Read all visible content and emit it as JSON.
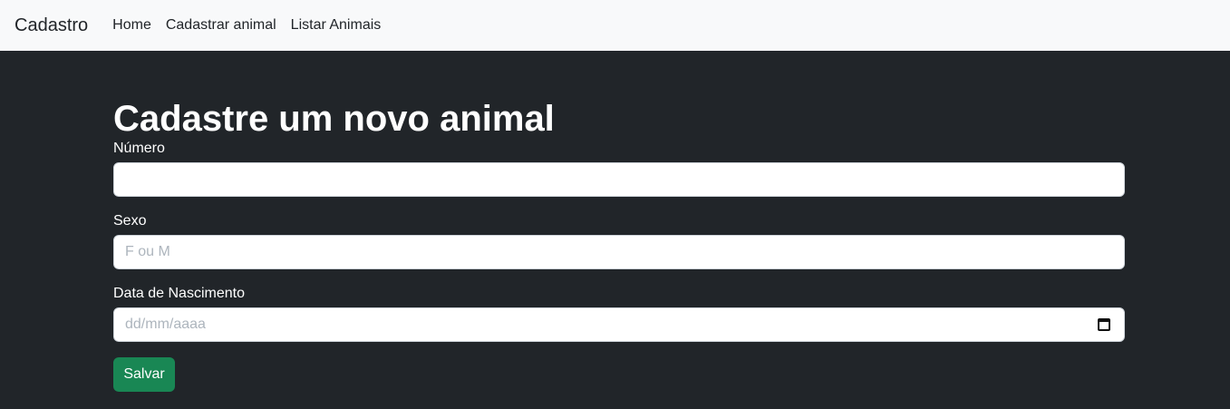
{
  "navbar": {
    "brand": "Cadastro",
    "links": [
      "Home",
      "Cadastrar animal",
      "Listar Animais"
    ]
  },
  "page": {
    "title": "Cadastre um novo animal"
  },
  "form": {
    "numero": {
      "label": "Número",
      "value": "",
      "placeholder": ""
    },
    "sexo": {
      "label": "Sexo",
      "value": "",
      "placeholder": "F ou M"
    },
    "nascimento": {
      "label": "Data de Nascimento",
      "value": "",
      "placeholder": "dd/mm/aaaa"
    },
    "submit_label": "Salvar"
  },
  "colors": {
    "navbar_bg": "#f8f9fa",
    "page_bg": "#212529",
    "button_bg": "#198754"
  },
  "icons": {
    "date_field": "calendar-icon"
  }
}
